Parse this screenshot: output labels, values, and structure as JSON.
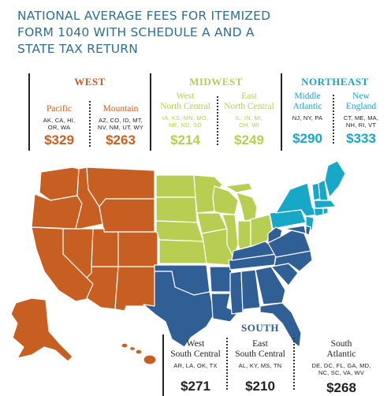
{
  "title_lines": [
    "NATIONAL AVERAGE FEES FOR ITEMIZED",
    "FORM 1040 WITH SCHEDULE A AND A",
    "STATE TAX RETURN"
  ],
  "regions": {
    "west": {
      "name": "WEST",
      "color": "#c65f21",
      "divisions": [
        {
          "name_lines": [
            "Pacific"
          ],
          "states_lines": [
            "AK, CA, HI,",
            "OR, WA"
          ],
          "fee": "$329"
        },
        {
          "name_lines": [
            "Mountain"
          ],
          "states_lines": [
            "AZ, CO, ID, MT,",
            "NV, NM, UT, WY"
          ],
          "fee": "$263"
        }
      ]
    },
    "midwest": {
      "name": "MIDWEST",
      "color": "#b7ce53",
      "divisions": [
        {
          "name_lines": [
            "West",
            "North Central"
          ],
          "states_lines": [
            "IA, KS, MN, MO,",
            "NE, ND, SD"
          ],
          "fee": "$214"
        },
        {
          "name_lines": [
            "East",
            "North Central"
          ],
          "states_lines": [
            "IL, IN, MI,",
            "OH, WI"
          ],
          "fee": "$249"
        }
      ]
    },
    "northeast": {
      "name": "NORTHEAST",
      "color": "#17a7c7",
      "divisions": [
        {
          "name_lines": [
            "Middle",
            "Atlantic"
          ],
          "states_lines": [
            "NJ, NY, PA"
          ],
          "fee": "$290"
        },
        {
          "name_lines": [
            "New",
            "England"
          ],
          "states_lines": [
            "CT, ME, MA,",
            "NH, RI, VT"
          ],
          "fee": "$333"
        }
      ]
    },
    "south": {
      "name": "SOUTH",
      "color": "#2f5f94",
      "divisions": [
        {
          "name_lines": [
            "West",
            "South Central"
          ],
          "states_lines": [
            "AR, LA, OK, TX"
          ],
          "fee": "$271"
        },
        {
          "name_lines": [
            "East",
            "South Central"
          ],
          "states_lines": [
            "AL, KY, MS, TN"
          ],
          "fee": "$210"
        },
        {
          "name_lines": [
            "South",
            "Atlantic"
          ],
          "states_lines": [
            "DE, DC, FL, GA, MD,",
            "NC, SC, VA, WV"
          ],
          "fee": "$268"
        }
      ]
    }
  }
}
